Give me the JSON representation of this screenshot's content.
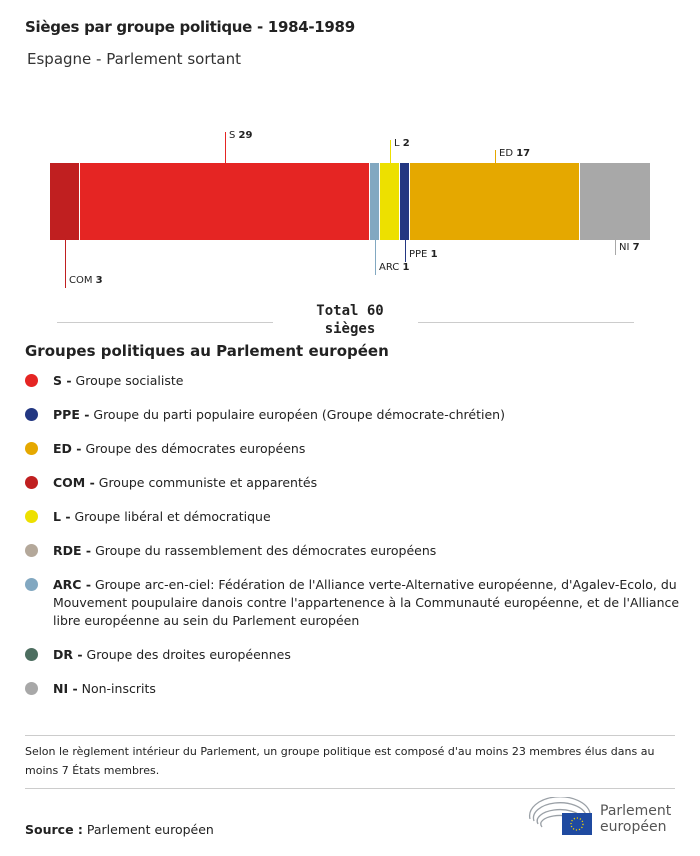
{
  "title": "Sièges par groupe politique - 1984-1989",
  "subtitle": "Espagne - Parlement sortant",
  "chart_data": {
    "type": "stacked-bar",
    "total_label_1": "Total 60",
    "total_label_2": "sièges",
    "segments": [
      {
        "name": "COM",
        "value": 3,
        "color": "#c01f20",
        "label_pos": "bottom"
      },
      {
        "name": "S",
        "value": 29,
        "color": "#e52523",
        "label_pos": "top"
      },
      {
        "name": "ARC",
        "value": 1,
        "color": "#82a8c1",
        "label_pos": "bottom"
      },
      {
        "name": "L",
        "value": 2,
        "color": "#ede000",
        "label_pos": "top"
      },
      {
        "name": "PPE",
        "value": 1,
        "color": "#233782",
        "label_pos": "bottom"
      },
      {
        "name": "ED",
        "value": 17,
        "color": "#e5a800",
        "label_pos": "top"
      },
      {
        "name": "NI",
        "value": 7,
        "color": "#a8a8a8",
        "label_pos": "bottom"
      }
    ]
  },
  "legend": {
    "title": "Groupes politiques au Parlement européen",
    "items": [
      {
        "abbr": "S -",
        "text": " Groupe socialiste",
        "color": "#e52523"
      },
      {
        "abbr": "PPE -",
        "text": " Groupe du parti populaire européen (Groupe démocrate-chrétien)",
        "color": "#233782"
      },
      {
        "abbr": "ED -",
        "text": " Groupe des démocrates européens",
        "color": "#e5a800"
      },
      {
        "abbr": "COM -",
        "text": " Groupe communiste et apparentés",
        "color": "#c01f20"
      },
      {
        "abbr": "L -",
        "text": " Groupe libéral et démocratique",
        "color": "#ede000"
      },
      {
        "abbr": "RDE -",
        "text": " Groupe du rassemblement des démocrates européens",
        "color": "#b4a89a"
      },
      {
        "abbr": "ARC -",
        "text": " Groupe arc-en-ciel: Fédération de l'Alliance verte-Alternative européenne, d'Agalev-Ecolo, du Mouvement poupulaire danois contre l'appartenence à la Communauté européenne, et de l'Alliance libre européenne au sein du Parlement européen",
        "color": "#82a8c1"
      },
      {
        "abbr": "DR -",
        "text": " Groupe des droites européennes",
        "color": "#4d6e60"
      },
      {
        "abbr": "NI -",
        "text": " Non-inscrits",
        "color": "#a8a8a8"
      }
    ]
  },
  "note": "Selon le règlement intérieur du Parlement, un groupe politique est composé d'au moins 23 membres élus dans au moins 7 États membres.",
  "source_label": "Source :",
  "source": " Parlement européen",
  "logo_text": "Parlement européen"
}
